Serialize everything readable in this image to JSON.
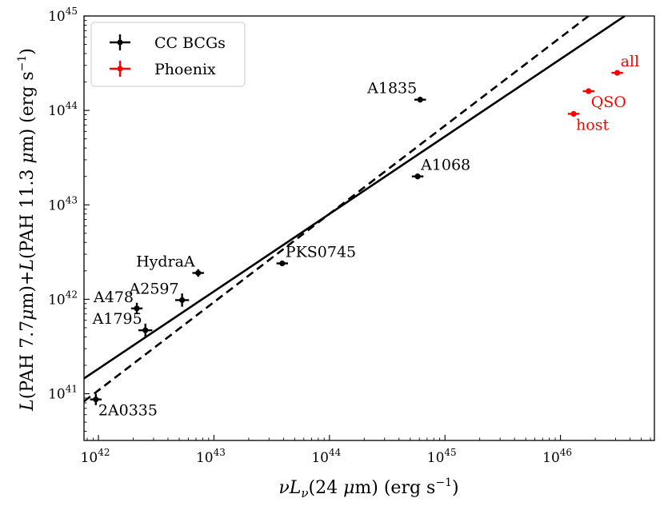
{
  "chart_data": {
    "type": "scatter",
    "xscale": "log",
    "yscale": "log",
    "xlim": [
      7.5e+41,
      6.5e+46
    ],
    "ylim": [
      3.2e+40,
      1e+45
    ],
    "xlabel": "νLν(24 μm) (erg s⁻¹)",
    "ylabel": "L(PAH 7.7μm)+L(PAH 11.3 μm) (erg s⁻¹)",
    "xticks": [
      {
        "value": 1e+42,
        "base": "10",
        "exp": "42"
      },
      {
        "value": 1e+43,
        "base": "10",
        "exp": "43"
      },
      {
        "value": 1e+44,
        "base": "10",
        "exp": "44"
      },
      {
        "value": 1e+45,
        "base": "10",
        "exp": "45"
      },
      {
        "value": 1e+46,
        "base": "10",
        "exp": "46"
      }
    ],
    "yticks": [
      {
        "value": 1e+41,
        "base": "10",
        "exp": "41"
      },
      {
        "value": 1e+42,
        "base": "10",
        "exp": "42"
      },
      {
        "value": 1e+43,
        "base": "10",
        "exp": "43"
      },
      {
        "value": 1e+44,
        "base": "10",
        "exp": "44"
      },
      {
        "value": 1e+45,
        "base": "10",
        "exp": "45"
      }
    ],
    "legend": {
      "placement": "top-left",
      "entries": [
        {
          "label": "CC BCGs",
          "color": "#000000"
        },
        {
          "label": "Phoenix",
          "color": "#ff0000"
        }
      ]
    },
    "series": [
      {
        "name": "CC BCGs",
        "color": "#000000",
        "points": [
          {
            "label": "2A0335",
            "x": 9.5e+41,
            "y": 8.7e+40,
            "xerr": 0.05,
            "yerr": 0.06,
            "anchor": "below-right"
          },
          {
            "label": "A478",
            "x": 2.15e+42,
            "y": 8e+41,
            "xerr": 0.05,
            "yerr": 0.06,
            "anchor": "above-left"
          },
          {
            "label": "A1795",
            "x": 2.55e+42,
            "y": 4.7e+41,
            "xerr": 0.06,
            "yerr": 0.07,
            "anchor": "above-left"
          },
          {
            "label": "A2597",
            "x": 5.3e+42,
            "y": 9.8e+41,
            "xerr": 0.06,
            "yerr": 0.07,
            "anchor": "above-left"
          },
          {
            "label": "HydraA",
            "x": 7.3e+42,
            "y": 1.9e+42,
            "xerr": 0.05,
            "yerr": 0.04,
            "anchor": "above-left"
          },
          {
            "label": "PKS0745",
            "x": 3.9e+43,
            "y": 2.4e+42,
            "xerr": 0.05,
            "yerr": 0.03,
            "anchor": "above-right"
          },
          {
            "label": "A1835",
            "x": 6.1e+44,
            "y": 1.3e+44,
            "xerr": 0.05,
            "yerr": 0.03,
            "anchor": "above-left"
          },
          {
            "label": "A1068",
            "x": 5.8e+44,
            "y": 2e+43,
            "xerr": 0.05,
            "yerr": 0.03,
            "anchor": "above-right"
          }
        ]
      },
      {
        "name": "Phoenix",
        "color": "#ff0000",
        "points": [
          {
            "label": "all",
            "x": 3.1e+46,
            "y": 2.5e+44,
            "xerr": 0.05,
            "yerr": 0.0,
            "anchor": "above-right"
          },
          {
            "label": "QSO",
            "x": 1.75e+46,
            "y": 1.6e+44,
            "xerr": 0.05,
            "yerr": 0.0,
            "anchor": "below-right"
          },
          {
            "label": "host",
            "x": 1.3e+46,
            "y": 9.2e+43,
            "xerr": 0.05,
            "yerr": 0.0,
            "anchor": "below-right"
          }
        ]
      }
    ],
    "lines": [
      {
        "name": "fit-solid",
        "style": "solid",
        "points": [
          [
            7.5e+41,
            1.45e+41
          ],
          [
            3.6e+46,
            1e+45
          ]
        ]
      },
      {
        "name": "fit-dashed",
        "style": "dashed",
        "points": [
          [
            7.5e+41,
            8.3e+40
          ],
          [
            1.75e+46,
            1e+45
          ]
        ]
      }
    ]
  }
}
